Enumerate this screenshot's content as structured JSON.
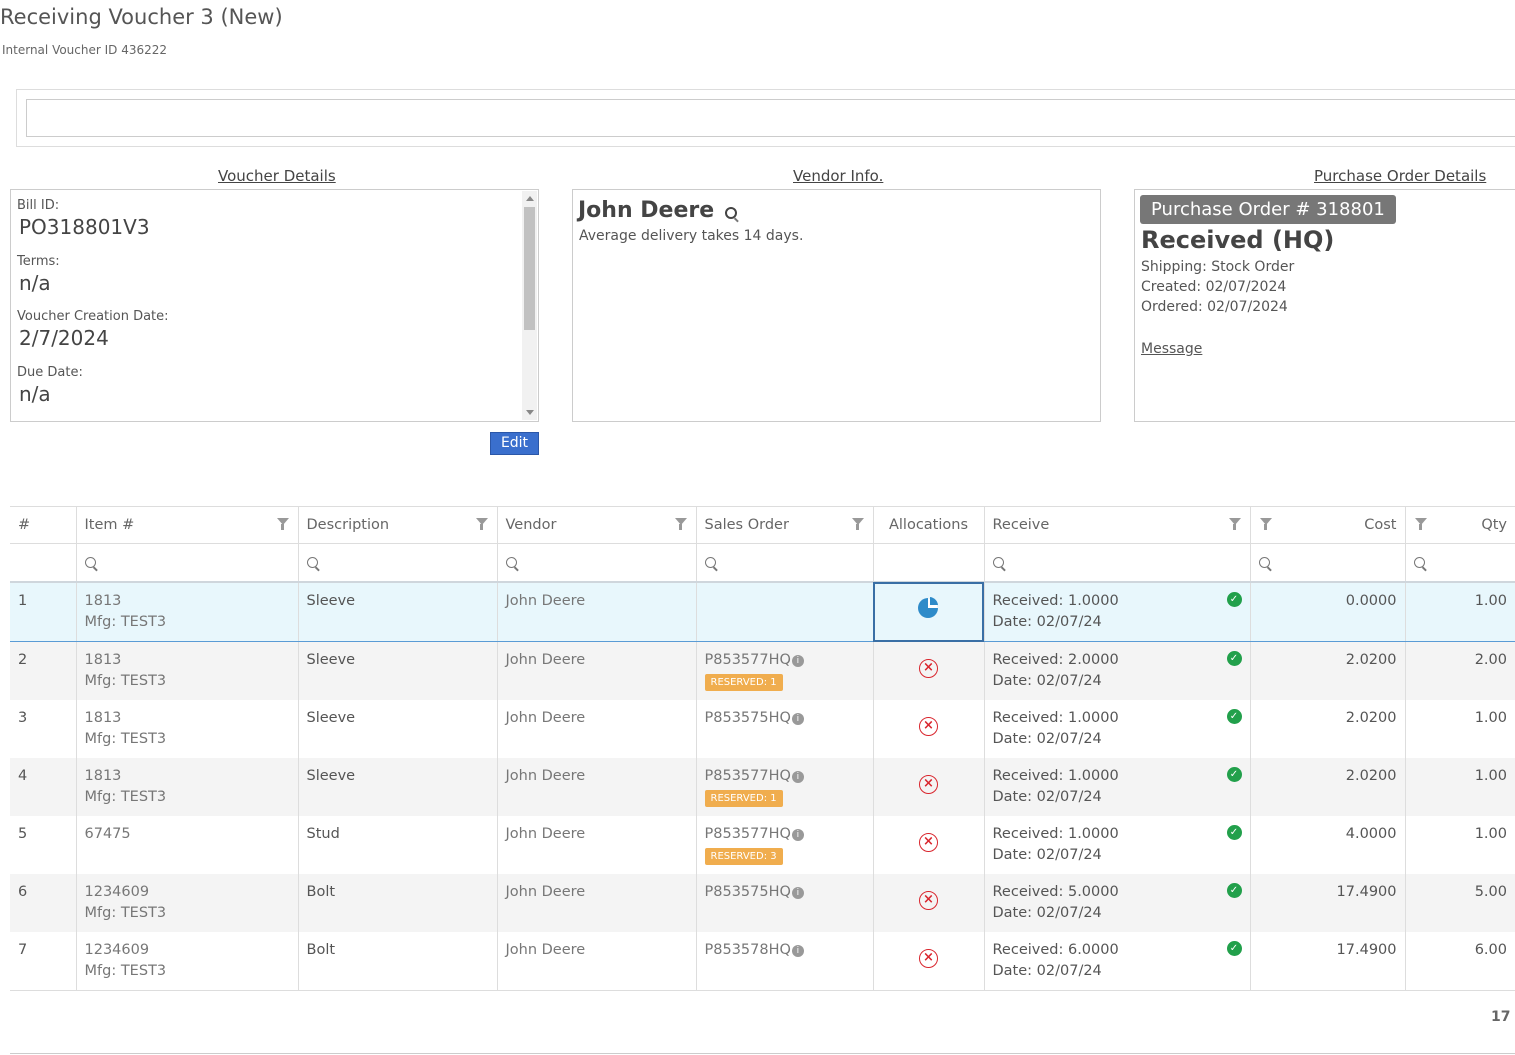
{
  "header": {
    "title": "Receiving Voucher 3 (New)",
    "subtitle": "Internal Voucher ID 436222"
  },
  "voucher_details": {
    "heading": "Voucher Details",
    "fields": [
      {
        "label": "Bill ID:",
        "value": "PO318801V3"
      },
      {
        "label": "Terms:",
        "value": "n/a"
      },
      {
        "label": "Voucher Creation Date:",
        "value": "2/7/2024"
      },
      {
        "label": "Due Date:",
        "value": "n/a"
      }
    ],
    "edit_label": "Edit"
  },
  "vendor_info": {
    "heading": "Vendor Info.",
    "name": "John Deere",
    "delivery_note": "Average delivery takes 14 days."
  },
  "po_details": {
    "heading": "Purchase Order Details",
    "badge": "Purchase Order # 318801",
    "status": "Received (HQ)",
    "shipping": "Shipping: Stock Order",
    "created": "Created: 02/07/2024",
    "ordered": "Ordered: 02/07/2024",
    "message_link": "Message"
  },
  "grid": {
    "columns": [
      "#",
      "Item #",
      "Description",
      "Vendor",
      "Sales Order",
      "Allocations",
      "Receive",
      "Cost",
      "Qty"
    ],
    "rows": [
      {
        "num": "1",
        "item": "1813",
        "mfg": "Mfg: TEST3",
        "desc": "Sleeve",
        "vendor": "John Deere",
        "so": "",
        "reserved": "",
        "received": "Received: 1.0000",
        "date": "Date: 02/07/24",
        "cost": "0.0000",
        "qty": "1.00"
      },
      {
        "num": "2",
        "item": "1813",
        "mfg": "Mfg: TEST3",
        "desc": "Sleeve",
        "vendor": "John Deere",
        "so": "P853577HQ",
        "reserved": "RESERVED: 1",
        "received": "Received: 2.0000",
        "date": "Date: 02/07/24",
        "cost": "2.0200",
        "qty": "2.00"
      },
      {
        "num": "3",
        "item": "1813",
        "mfg": "Mfg: TEST3",
        "desc": "Sleeve",
        "vendor": "John Deere",
        "so": "P853575HQ",
        "reserved": "",
        "received": "Received: 1.0000",
        "date": "Date: 02/07/24",
        "cost": "2.0200",
        "qty": "1.00"
      },
      {
        "num": "4",
        "item": "1813",
        "mfg": "Mfg: TEST3",
        "desc": "Sleeve",
        "vendor": "John Deere",
        "so": "P853577HQ",
        "reserved": "RESERVED: 1",
        "received": "Received: 1.0000",
        "date": "Date: 02/07/24",
        "cost": "2.0200",
        "qty": "1.00"
      },
      {
        "num": "5",
        "item": "67475",
        "mfg": "",
        "desc": "Stud",
        "vendor": "John Deere",
        "so": "P853577HQ",
        "reserved": "RESERVED: 3",
        "received": "Received: 1.0000",
        "date": "Date: 02/07/24",
        "cost": "4.0000",
        "qty": "1.00"
      },
      {
        "num": "6",
        "item": "1234609",
        "mfg": "Mfg: TEST3",
        "desc": "Bolt",
        "vendor": "John Deere",
        "so": "P853575HQ",
        "reserved": "",
        "received": "Received: 5.0000",
        "date": "Date: 02/07/24",
        "cost": "17.4900",
        "qty": "5.00"
      },
      {
        "num": "7",
        "item": "1234609",
        "mfg": "Mfg: TEST3",
        "desc": "Bolt",
        "vendor": "John Deere",
        "so": "P853578HQ",
        "reserved": "",
        "received": "Received: 6.0000",
        "date": "Date: 02/07/24",
        "cost": "17.4900",
        "qty": "6.00"
      }
    ],
    "footer_count": "17"
  },
  "colors": {
    "edit_button": "#3a6fcd",
    "selected_row": "#e8f7fc",
    "reserved_badge": "#f0ad4e",
    "check_icon": "#22a04b",
    "x_icon": "#d9262e",
    "pie_icon": "#2e8bc9"
  }
}
